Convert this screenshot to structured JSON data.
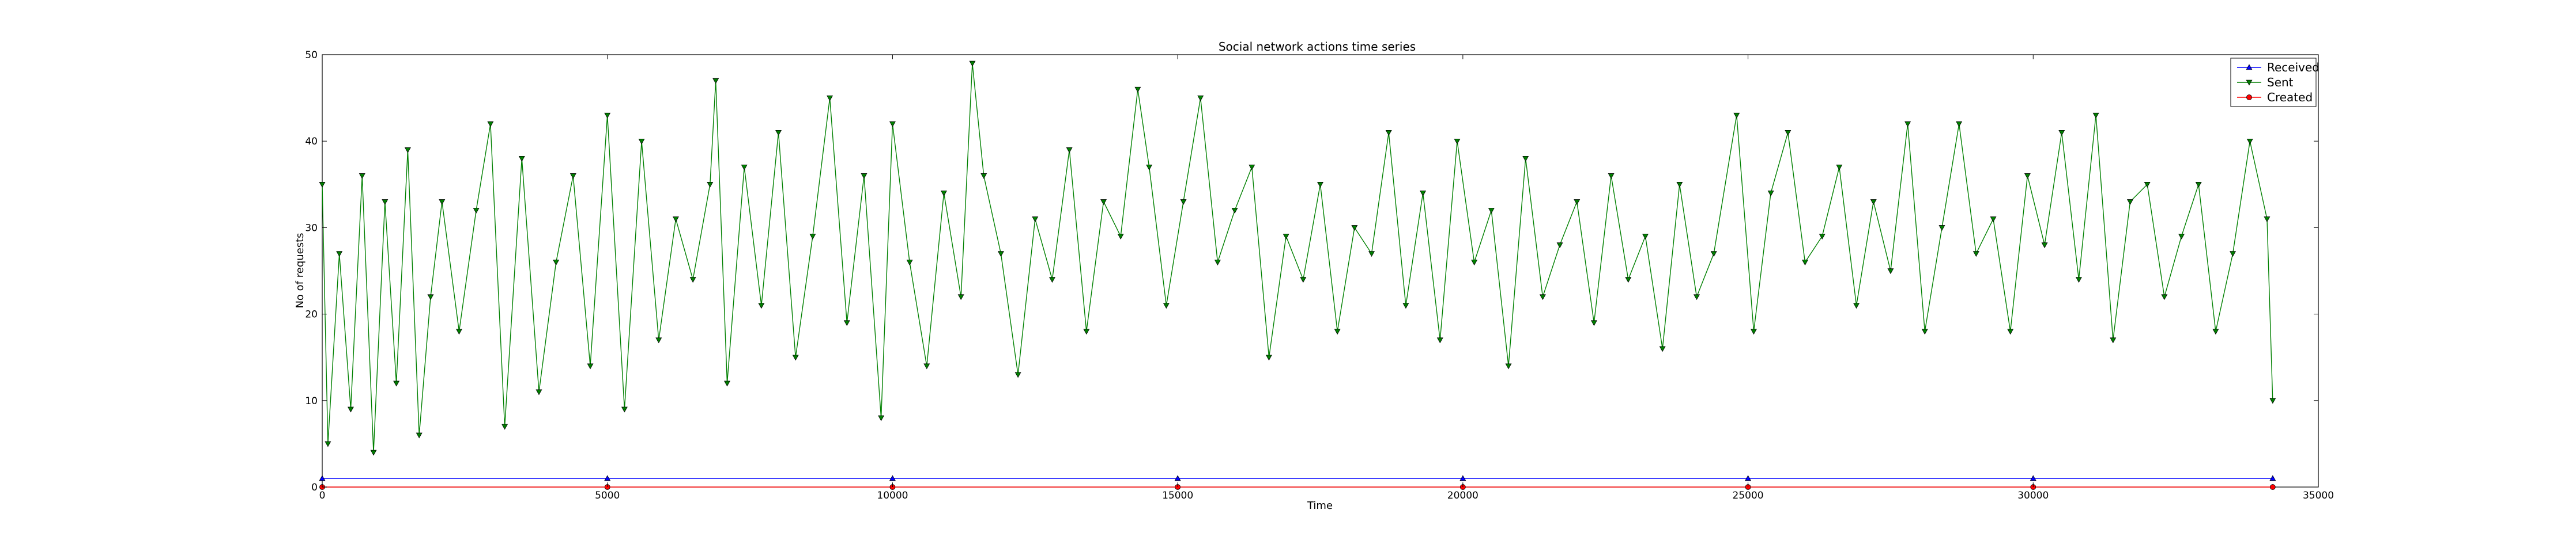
{
  "chart_data": {
    "type": "line",
    "title": "Social network actions time series",
    "xlabel": "Time",
    "ylabel": "No of requests",
    "xlim": [
      0,
      35000
    ],
    "ylim": [
      0,
      50
    ],
    "x_ticks": [
      "0",
      "5000",
      "10000",
      "15000",
      "20000",
      "25000",
      "30000",
      "35000"
    ],
    "y_ticks": [
      "0",
      "10",
      "20",
      "30",
      "40",
      "50"
    ],
    "x_tick_values": [
      0,
      5000,
      10000,
      15000,
      20000,
      25000,
      30000,
      35000
    ],
    "y_tick_values": [
      0,
      10,
      20,
      30,
      40,
      50
    ],
    "grid": false,
    "legend_position": "top-right",
    "series": [
      {
        "name": "Received",
        "color": "#0000ff",
        "marker": "triangle-up",
        "x": [
          0,
          5000,
          10000,
          15000,
          20000,
          25000,
          30000,
          34200
        ],
        "values": [
          1,
          1,
          1,
          1,
          1,
          1,
          1,
          1
        ]
      },
      {
        "name": "Sent",
        "color": "#008000",
        "marker": "triangle-down",
        "x": [
          0,
          100,
          300,
          500,
          700,
          900,
          1100,
          1300,
          1500,
          1700,
          1900,
          2100,
          2400,
          2700,
          2950,
          3200,
          3500,
          3800,
          4100,
          4400,
          4700,
          5000,
          5300,
          5600,
          5900,
          6200,
          6500,
          6800,
          6900,
          7100,
          7400,
          7700,
          8000,
          8300,
          8600,
          8900,
          9200,
          9500,
          9800,
          10000,
          10300,
          10600,
          10900,
          11200,
          11400,
          11600,
          11900,
          12200,
          12500,
          12800,
          13100,
          13400,
          13700,
          14000,
          14300,
          14500,
          14800,
          15100,
          15400,
          15700,
          16000,
          16300,
          16600,
          16900,
          17200,
          17500,
          17800,
          18100,
          18400,
          18700,
          19000,
          19300,
          19600,
          19900,
          20200,
          20500,
          20800,
          21100,
          21400,
          21700,
          22000,
          22300,
          22600,
          22900,
          23200,
          23500,
          23800,
          24100,
          24400,
          24800,
          25100,
          25400,
          25700,
          26000,
          26300,
          26600,
          26900,
          27200,
          27500,
          27800,
          28100,
          28400,
          28700,
          29000,
          29300,
          29600,
          29900,
          30200,
          30500,
          30800,
          31100,
          31400,
          31700,
          32000,
          32300,
          32600,
          32900,
          33200,
          33500,
          33800,
          34100,
          34200
        ],
        "values": [
          35,
          5,
          27,
          9,
          36,
          4,
          33,
          12,
          39,
          6,
          22,
          33,
          18,
          32,
          42,
          7,
          38,
          11,
          26,
          36,
          14,
          43,
          9,
          40,
          17,
          31,
          24,
          35,
          47,
          12,
          37,
          21,
          41,
          15,
          29,
          45,
          19,
          36,
          8,
          42,
          26,
          14,
          34,
          22,
          49,
          36,
          27,
          13,
          31,
          24,
          39,
          18,
          33,
          29,
          46,
          37,
          21,
          33,
          45,
          26,
          32,
          37,
          15,
          29,
          24,
          35,
          18,
          30,
          27,
          41,
          21,
          34,
          17,
          40,
          26,
          32,
          14,
          38,
          22,
          28,
          33,
          19,
          36,
          24,
          29,
          16,
          35,
          22,
          27,
          43,
          18,
          34,
          41,
          26,
          29,
          37,
          21,
          33,
          25,
          42,
          18,
          30,
          42,
          27,
          31,
          18,
          36,
          28,
          41,
          24,
          43,
          17,
          33,
          35,
          22,
          29,
          35,
          18,
          27,
          40,
          31,
          10
        ]
      },
      {
        "name": "Created",
        "color": "#ff0000",
        "marker": "circle",
        "x": [
          0,
          5000,
          10000,
          15000,
          20000,
          25000,
          30000,
          34200
        ],
        "values": [
          0,
          0,
          0,
          0,
          0,
          0,
          0,
          0
        ]
      }
    ]
  }
}
